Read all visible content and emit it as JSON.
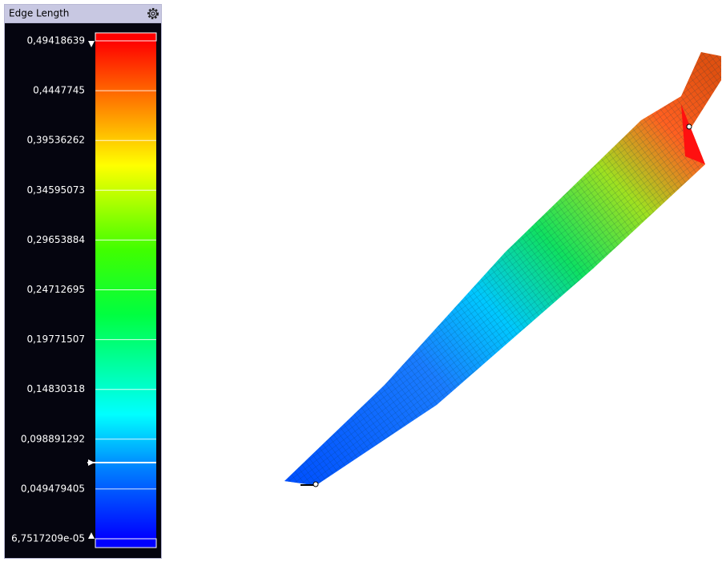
{
  "panel": {
    "title": "Edge Length",
    "scale_labels": [
      "0,49418639",
      "0,4447745",
      "0,39536262",
      "0,34595073",
      "0,29653884",
      "0,24712695",
      "0,19771507",
      "0,14830318",
      "0,098891292",
      "0,049479405",
      "6,7517209e-05"
    ]
  }
}
